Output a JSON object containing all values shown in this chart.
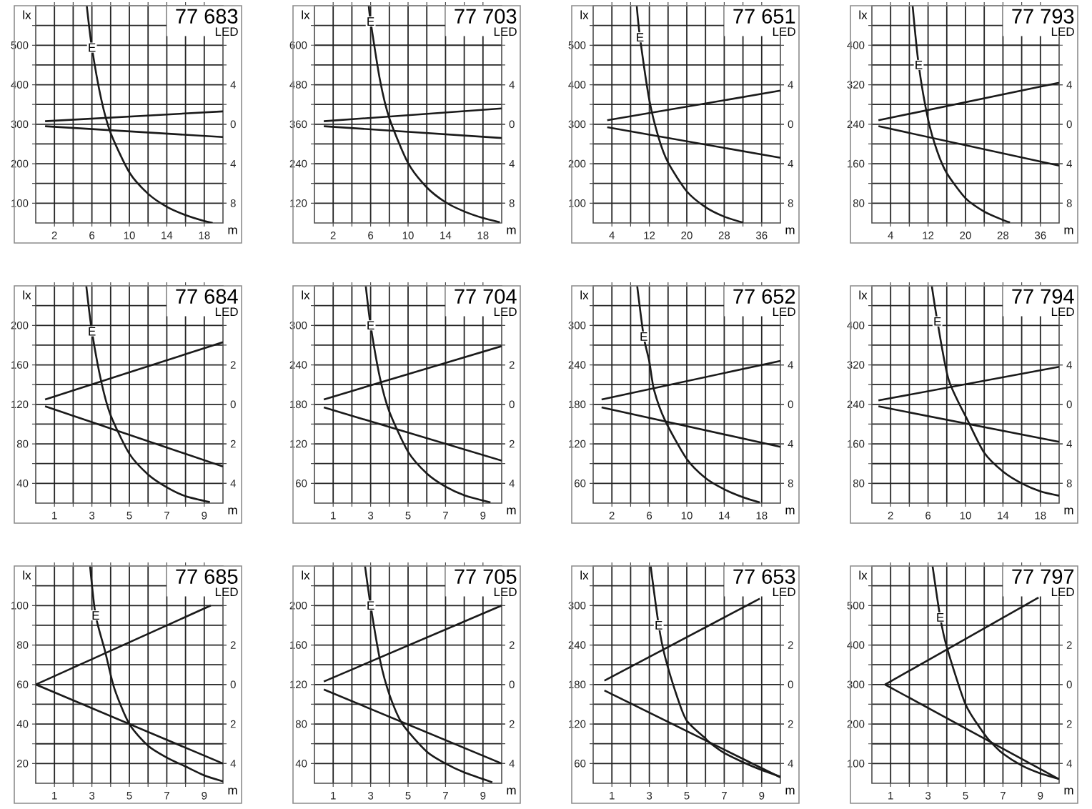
{
  "chart_data": [
    {
      "type": "line",
      "title": "77 683",
      "subtitle": "LED",
      "xlabel": "m",
      "ylabel": "lx",
      "grid": true,
      "xlim": [
        0,
        20
      ],
      "xticks": [
        2,
        {
          "value": 4,
          "label": null
        },
        6,
        {
          "value": 8,
          "label": null
        },
        10,
        {
          "value": 12,
          "label": null
        },
        14,
        {
          "value": 16,
          "label": null
        },
        18
      ],
      "ylim": [
        50,
        600
      ],
      "yticks": [
        100,
        {
          "value": 150,
          "label": null
        },
        200,
        {
          "value": 250,
          "label": null
        },
        300,
        {
          "value": 350,
          "label": null
        },
        400,
        {
          "value": 450,
          "label": null
        },
        500,
        {
          "value": 550,
          "label": null
        }
      ],
      "y2lim": [
        -10,
        12
      ],
      "y2ticks": [
        4,
        0,
        {
          "value": -4,
          "label": "4"
        },
        {
          "value": -8,
          "label": "8"
        }
      ],
      "series": [
        {
          "name": "E",
          "color": "#1a1a1a",
          "x": [
            5.45,
            6,
            7,
            8,
            10,
            12,
            14,
            16,
            18,
            18.9
          ],
          "values": [
            600,
            494,
            363,
            278,
            178,
            124,
            91,
            70,
            55,
            50
          ]
        },
        {
          "color": "#1a1a1a",
          "axis": "y2",
          "x": [
            1,
            20
          ],
          "values": [
            0.3,
            1.3
          ]
        },
        {
          "color": "#1a1a1a",
          "axis": "y2",
          "x": [
            1,
            20
          ],
          "values": [
            -0.2,
            -1.3
          ]
        }
      ]
    },
    {
      "type": "line",
      "title": "77 703",
      "subtitle": "LED",
      "xlabel": "m",
      "ylabel": "lx",
      "grid": true,
      "xlim": [
        0,
        20
      ],
      "xticks": [
        2,
        {
          "value": 4,
          "label": null
        },
        6,
        {
          "value": 8,
          "label": null
        },
        10,
        {
          "value": 12,
          "label": null
        },
        14,
        {
          "value": 16,
          "label": null
        },
        18
      ],
      "ylim": [
        60,
        720
      ],
      "yticks": [
        120,
        {
          "value": 180,
          "label": null
        },
        240,
        {
          "value": 300,
          "label": null
        },
        360,
        {
          "value": 420,
          "label": null
        },
        480,
        {
          "value": 540,
          "label": null
        },
        600,
        {
          "value": 660,
          "label": null
        }
      ],
      "y2lim": [
        -10,
        12
      ],
      "y2ticks": [
        4,
        0,
        {
          "value": -4,
          "label": "4"
        },
        {
          "value": -8,
          "label": "8"
        }
      ],
      "series": [
        {
          "name": "E",
          "color": "#1a1a1a",
          "x": [
            5.8,
            6,
            7,
            8,
            10,
            12,
            14,
            16,
            18,
            19.8
          ],
          "values": [
            720,
            672,
            494,
            378,
            242,
            168,
            123,
            95,
            75,
            62
          ]
        },
        {
          "color": "#1a1a1a",
          "axis": "y2",
          "x": [
            1,
            20
          ],
          "values": [
            0.3,
            1.6
          ]
        },
        {
          "color": "#1a1a1a",
          "axis": "y2",
          "x": [
            1,
            20
          ],
          "values": [
            -0.2,
            -1.4
          ]
        }
      ]
    },
    {
      "type": "line",
      "title": "77 651",
      "subtitle": "LED",
      "xlabel": "m",
      "ylabel": "lx",
      "grid": true,
      "xlim": [
        0,
        40
      ],
      "xticks": [
        4,
        {
          "value": 8,
          "label": null
        },
        12,
        {
          "value": 16,
          "label": null
        },
        20,
        {
          "value": 24,
          "label": null
        },
        28,
        {
          "value": 32,
          "label": null
        },
        36
      ],
      "ylim": [
        50,
        600
      ],
      "yticks": [
        100,
        {
          "value": 150,
          "label": null
        },
        200,
        {
          "value": 250,
          "label": null
        },
        300,
        {
          "value": 350,
          "label": null
        },
        400,
        {
          "value": 450,
          "label": null
        },
        500,
        {
          "value": 550,
          "label": null
        }
      ],
      "y2lim": [
        -10,
        12
      ],
      "y2ticks": [
        4,
        0,
        {
          "value": -4,
          "label": "4"
        },
        {
          "value": -8,
          "label": "8"
        }
      ],
      "series": [
        {
          "name": "E",
          "color": "#1a1a1a",
          "x": [
            9.3,
            10,
            12,
            14,
            16,
            20,
            24,
            28,
            32
          ],
          "values": [
            600,
            520,
            361,
            265,
            203,
            130,
            90,
            66,
            51
          ]
        },
        {
          "color": "#1a1a1a",
          "axis": "y2",
          "x": [
            3,
            40
          ],
          "values": [
            0.4,
            3.4
          ]
        },
        {
          "color": "#1a1a1a",
          "axis": "y2",
          "x": [
            3,
            40
          ],
          "values": [
            -0.3,
            -3.4
          ]
        }
      ]
    },
    {
      "type": "line",
      "title": "77 793",
      "subtitle": "LED",
      "xlabel": "m",
      "ylabel": "lx",
      "grid": true,
      "xlim": [
        0,
        40
      ],
      "xticks": [
        4,
        {
          "value": 8,
          "label": null
        },
        12,
        {
          "value": 16,
          "label": null
        },
        20,
        {
          "value": 24,
          "label": null
        },
        28,
        {
          "value": 32,
          "label": null
        },
        36
      ],
      "ylim": [
        40,
        480
      ],
      "yticks": [
        80,
        {
          "value": 120,
          "label": null
        },
        160,
        {
          "value": 200,
          "label": null
        },
        240,
        {
          "value": 280,
          "label": null
        },
        320,
        {
          "value": 360,
          "label": null
        },
        400,
        {
          "value": 440,
          "label": null
        }
      ],
      "y2lim": [
        -10,
        12
      ],
      "y2ticks": [
        4,
        0,
        {
          "value": -4,
          "label": "4"
        },
        {
          "value": -8,
          "label": "8"
        }
      ],
      "series": [
        {
          "name": "E",
          "color": "#1a1a1a",
          "x": [
            8.7,
            10,
            12,
            14,
            16,
            20,
            24,
            28,
            29.5
          ],
          "values": [
            480,
            360,
            250,
            184,
            141,
            90,
            63,
            46,
            41
          ]
        },
        {
          "color": "#1a1a1a",
          "axis": "y2",
          "x": [
            1.4,
            40
          ],
          "values": [
            0.4,
            4.2
          ]
        },
        {
          "color": "#1a1a1a",
          "axis": "y2",
          "x": [
            1.4,
            40
          ],
          "values": [
            -0.2,
            -4.2
          ]
        }
      ]
    },
    {
      "type": "line",
      "title": "77 684",
      "subtitle": "LED",
      "xlabel": "m",
      "ylabel": "lx",
      "grid": true,
      "xlim": [
        0,
        10
      ],
      "xticks": [
        1,
        {
          "value": 2,
          "label": null
        },
        3,
        {
          "value": 4,
          "label": null
        },
        5,
        {
          "value": 6,
          "label": null
        },
        7,
        {
          "value": 8,
          "label": null
        },
        9
      ],
      "ylim": [
        20,
        240
      ],
      "yticks": [
        40,
        {
          "value": 60,
          "label": null
        },
        80,
        {
          "value": 100,
          "label": null
        },
        120,
        {
          "value": 140,
          "label": null
        },
        160,
        {
          "value": 180,
          "label": null
        },
        200,
        {
          "value": 220,
          "label": null
        }
      ],
      "y2lim": [
        -5,
        6
      ],
      "y2ticks": [
        2,
        0,
        {
          "value": -2,
          "label": "2"
        },
        {
          "value": -4,
          "label": "4"
        }
      ],
      "series": [
        {
          "name": "E",
          "color": "#1a1a1a",
          "x": [
            2.7,
            3,
            3.5,
            4,
            5,
            6,
            7,
            8,
            9.3
          ],
          "values": [
            240,
            194,
            143,
            109,
            70,
            49,
            36,
            27,
            21
          ]
        },
        {
          "color": "#1a1a1a",
          "axis": "y2",
          "x": [
            0.5,
            10
          ],
          "values": [
            0.25,
            3.15
          ]
        },
        {
          "color": "#1a1a1a",
          "axis": "y2",
          "x": [
            0.5,
            10
          ],
          "values": [
            -0.1,
            -3.15
          ]
        }
      ]
    },
    {
      "type": "line",
      "title": "77 704",
      "subtitle": "LED",
      "xlabel": "m",
      "ylabel": "lx",
      "grid": true,
      "xlim": [
        0,
        10
      ],
      "xticks": [
        1,
        {
          "value": 2,
          "label": null
        },
        3,
        {
          "value": 4,
          "label": null
        },
        5,
        {
          "value": 6,
          "label": null
        },
        7,
        {
          "value": 8,
          "label": null
        },
        9
      ],
      "ylim": [
        30,
        360
      ],
      "yticks": [
        60,
        {
          "value": 90,
          "label": null
        },
        120,
        {
          "value": 150,
          "label": null
        },
        180,
        {
          "value": 210,
          "label": null
        },
        240,
        {
          "value": 270,
          "label": null
        },
        300,
        {
          "value": 330,
          "label": null
        }
      ],
      "y2lim": [
        -5,
        6
      ],
      "y2ticks": [
        2,
        0,
        {
          "value": -2,
          "label": "2"
        },
        {
          "value": -4,
          "label": "4"
        }
      ],
      "series": [
        {
          "name": "E",
          "color": "#1a1a1a",
          "x": [
            2.74,
            3,
            3.5,
            4,
            5,
            6,
            7,
            8,
            9.4
          ],
          "values": [
            360,
            300,
            220,
            169,
            108,
            75,
            55,
            42,
            31
          ]
        },
        {
          "color": "#1a1a1a",
          "axis": "y2",
          "x": [
            0.5,
            10
          ],
          "values": [
            0.25,
            2.95
          ]
        },
        {
          "color": "#1a1a1a",
          "axis": "y2",
          "x": [
            0.5,
            10
          ],
          "values": [
            -0.15,
            -2.85
          ]
        }
      ]
    },
    {
      "type": "line",
      "title": "77 652",
      "subtitle": "LED",
      "xlabel": "m",
      "ylabel": "lx",
      "grid": true,
      "xlim": [
        0,
        20
      ],
      "xticks": [
        2,
        {
          "value": 4,
          "label": null
        },
        6,
        {
          "value": 8,
          "label": null
        },
        10,
        {
          "value": 12,
          "label": null
        },
        14,
        {
          "value": 16,
          "label": null
        },
        18
      ],
      "ylim": [
        30,
        360
      ],
      "yticks": [
        60,
        {
          "value": 90,
          "label": null
        },
        120,
        {
          "value": 150,
          "label": null
        },
        180,
        {
          "value": 210,
          "label": null
        },
        240,
        {
          "value": 270,
          "label": null
        },
        300,
        {
          "value": 330,
          "label": null
        }
      ],
      "y2lim": [
        -10,
        12
      ],
      "y2ticks": [
        4,
        0,
        {
          "value": -4,
          "label": "4"
        },
        {
          "value": -8,
          "label": "8"
        }
      ],
      "series": [
        {
          "name": "E",
          "color": "#1a1a1a",
          "x": [
            4.7,
            5.4,
            6,
            6.5,
            7.7,
            10,
            12,
            14,
            16,
            17.8
          ],
          "values": [
            360,
            283,
            245,
            202,
            155,
            97,
            68,
            51,
            39,
            31
          ]
        },
        {
          "color": "#1a1a1a",
          "axis": "y2",
          "x": [
            0.9,
            20
          ],
          "values": [
            0.5,
            4.4
          ]
        },
        {
          "color": "#1a1a1a",
          "axis": "y2",
          "x": [
            0.9,
            20
          ],
          "values": [
            -0.3,
            -4.3
          ]
        }
      ]
    },
    {
      "type": "line",
      "title": "77 794",
      "subtitle": "LED",
      "xlabel": "m",
      "ylabel": "lx",
      "grid": true,
      "xlim": [
        0,
        20
      ],
      "xticks": [
        2,
        {
          "value": 4,
          "label": null
        },
        6,
        {
          "value": 8,
          "label": null
        },
        10,
        {
          "value": 12,
          "label": null
        },
        14,
        {
          "value": 16,
          "label": null
        },
        18
      ],
      "ylim": [
        40,
        480
      ],
      "yticks": [
        80,
        {
          "value": 120,
          "label": null
        },
        160,
        {
          "value": 200,
          "label": null
        },
        240,
        {
          "value": 280,
          "label": null
        },
        320,
        {
          "value": 360,
          "label": null
        },
        400,
        {
          "value": 440,
          "label": null
        }
      ],
      "y2lim": [
        -10,
        12
      ],
      "y2ticks": [
        4,
        0,
        {
          "value": -4,
          "label": "4"
        },
        {
          "value": -8,
          "label": "8"
        }
      ],
      "series": [
        {
          "name": "E",
          "color": "#1a1a1a",
          "x": [
            6.4,
            7,
            8.2,
            10.3,
            12,
            14,
            16,
            18,
            20
          ],
          "values": [
            480,
            408,
            290,
            205,
            142,
            104,
            80,
            64,
            55
          ]
        },
        {
          "color": "#1a1a1a",
          "axis": "y2",
          "x": [
            0.7,
            20
          ],
          "values": [
            0.4,
            3.8
          ]
        },
        {
          "color": "#1a1a1a",
          "axis": "y2",
          "x": [
            0.7,
            20
          ],
          "values": [
            -0.2,
            -3.8
          ]
        }
      ]
    },
    {
      "type": "line",
      "title": "77 685",
      "subtitle": "LED",
      "xlabel": "m",
      "ylabel": "lx",
      "grid": true,
      "xlim": [
        0,
        10
      ],
      "xticks": [
        1,
        {
          "value": 2,
          "label": null
        },
        3,
        {
          "value": 4,
          "label": null
        },
        5,
        {
          "value": 6,
          "label": null
        },
        7,
        {
          "value": 8,
          "label": null
        },
        9
      ],
      "ylim": [
        10,
        120
      ],
      "yticks": [
        20,
        {
          "value": 30,
          "label": null
        },
        40,
        {
          "value": 50,
          "label": null
        },
        60,
        {
          "value": 70,
          "label": null
        },
        80,
        {
          "value": 90,
          "label": null
        },
        100,
        {
          "value": 110,
          "label": null
        }
      ],
      "y2lim": [
        -5,
        6
      ],
      "y2ticks": [
        2,
        0,
        {
          "value": -2,
          "label": "2"
        },
        {
          "value": -4,
          "label": "4"
        }
      ],
      "series": [
        {
          "name": "E",
          "color": "#1a1a1a",
          "x": [
            2.9,
            3.2,
            3.7,
            4.2,
            5,
            6,
            7,
            8,
            9,
            10
          ],
          "values": [
            120,
            95,
            77,
            58,
            40,
            29,
            23,
            18.5,
            14,
            11
          ]
        },
        {
          "color": "#1a1a1a",
          "axis": "y2",
          "x": [
            0,
            9.35
          ],
          "values": [
            0,
            4
          ]
        },
        {
          "color": "#1a1a1a",
          "axis": "y2",
          "x": [
            0,
            10
          ],
          "values": [
            0,
            -4
          ]
        }
      ]
    },
    {
      "type": "line",
      "title": "77 705",
      "subtitle": "LED",
      "xlabel": "m",
      "ylabel": "lx",
      "grid": true,
      "xlim": [
        0,
        10
      ],
      "xticks": [
        1,
        {
          "value": 2,
          "label": null
        },
        3,
        {
          "value": 4,
          "label": null
        },
        5,
        {
          "value": 6,
          "label": null
        },
        7,
        {
          "value": 8,
          "label": null
        },
        9
      ],
      "ylim": [
        20,
        240
      ],
      "yticks": [
        40,
        {
          "value": 60,
          "label": null
        },
        80,
        {
          "value": 100,
          "label": null
        },
        120,
        {
          "value": 140,
          "label": null
        },
        160,
        {
          "value": 180,
          "label": null
        },
        200,
        {
          "value": 220,
          "label": null
        }
      ],
      "y2lim": [
        -5,
        6
      ],
      "y2ticks": [
        2,
        0,
        {
          "value": -2,
          "label": "2"
        },
        {
          "value": -4,
          "label": "4"
        }
      ],
      "series": [
        {
          "name": "E",
          "color": "#1a1a1a",
          "x": [
            2.7,
            3,
            3.5,
            4,
            4.7,
            6,
            7,
            8,
            9.5
          ],
          "values": [
            240,
            200,
            145,
            110,
            80,
            52,
            40,
            31,
            21
          ]
        },
        {
          "color": "#1a1a1a",
          "axis": "y2",
          "x": [
            0.5,
            10
          ],
          "values": [
            0.15,
            4
          ]
        },
        {
          "color": "#1a1a1a",
          "axis": "y2",
          "x": [
            0.5,
            10
          ],
          "values": [
            -0.25,
            -4
          ]
        }
      ]
    },
    {
      "type": "line",
      "title": "77 653",
      "subtitle": "LED",
      "xlabel": "m",
      "ylabel": "lx",
      "grid": true,
      "xlim": [
        0,
        10
      ],
      "xticks": [
        1,
        {
          "value": 2,
          "label": null
        },
        3,
        {
          "value": 4,
          "label": null
        },
        5,
        {
          "value": 6,
          "label": null
        },
        7,
        {
          "value": 8,
          "label": null
        },
        9
      ],
      "ylim": [
        30,
        360
      ],
      "yticks": [
        60,
        {
          "value": 90,
          "label": null
        },
        120,
        {
          "value": 150,
          "label": null
        },
        180,
        {
          "value": 210,
          "label": null
        },
        240,
        {
          "value": 270,
          "label": null
        },
        300,
        {
          "value": 330,
          "label": null
        }
      ],
      "y2lim": [
        -5,
        6
      ],
      "y2ticks": [
        2,
        0,
        {
          "value": -2,
          "label": "2"
        },
        {
          "value": -4,
          "label": "4"
        }
      ],
      "series": [
        {
          "name": "E",
          "color": "#1a1a1a",
          "x": [
            3.07,
            3.5,
            3.83,
            4.5,
            5,
            6,
            6.3,
            7,
            8,
            9,
            10
          ],
          "values": [
            360,
            270,
            223,
            160,
            125,
            98,
            90,
            76,
            62,
            50,
            40
          ]
        },
        {
          "color": "#1a1a1a",
          "axis": "y2",
          "x": [
            0.6,
            8.9
          ],
          "values": [
            0.2,
            4.35
          ]
        },
        {
          "color": "#1a1a1a",
          "axis": "y2",
          "x": [
            0.6,
            10
          ],
          "values": [
            -0.3,
            -4.7
          ]
        }
      ]
    },
    {
      "type": "line",
      "title": "77 797",
      "subtitle": "LED",
      "xlabel": "m",
      "ylabel": "lx",
      "grid": true,
      "xlim": [
        0,
        10
      ],
      "xticks": [
        1,
        {
          "value": 2,
          "label": null
        },
        3,
        {
          "value": 4,
          "label": null
        },
        5,
        {
          "value": 6,
          "label": null
        },
        7,
        {
          "value": 8,
          "label": null
        },
        9
      ],
      "ylim": [
        50,
        600
      ],
      "yticks": [
        100,
        {
          "value": 150,
          "label": null
        },
        200,
        {
          "value": 250,
          "label": null
        },
        300,
        {
          "value": 350,
          "label": null
        },
        400,
        {
          "value": 450,
          "label": null
        },
        500,
        {
          "value": 550,
          "label": null
        }
      ],
      "y2lim": [
        -5,
        6
      ],
      "y2ticks": [
        2,
        0,
        {
          "value": -2,
          "label": "2"
        },
        {
          "value": -4,
          "label": "4"
        }
      ],
      "series": [
        {
          "name": "E",
          "color": "#1a1a1a",
          "x": [
            3.24,
            3.65,
            4,
            5,
            6,
            6.4,
            7,
            8,
            9,
            10
          ],
          "values": [
            600,
            470,
            395,
            250,
            175,
            152,
            125,
            95,
            75,
            61
          ]
        },
        {
          "color": "#1a1a1a",
          "axis": "y2",
          "x": [
            0.7,
            8.9
          ],
          "values": [
            0,
            4.4
          ]
        },
        {
          "color": "#1a1a1a",
          "axis": "y2",
          "x": [
            0.7,
            10
          ],
          "values": [
            0,
            -4.8
          ]
        }
      ]
    }
  ]
}
